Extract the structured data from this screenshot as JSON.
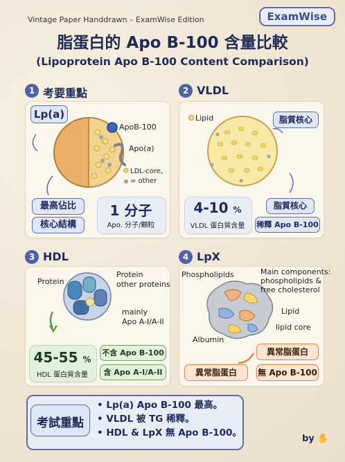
{
  "brand": "ExamWise",
  "edition": "Vintage Paper Handdrawn – ExamWise Edition",
  "title": "脂蛋白的 Apo B-100 含量比較",
  "subtitle": "(Lipoprotein Apo B-100 Content Comparison)",
  "sections": {
    "s1": {
      "num": "1",
      "heading": "考要重點",
      "tag": "Lp(a)",
      "labels": {
        "apob": "ApoB-100",
        "apoa": "Apo(a)",
        "core1": "LDL-core,",
        "core2": "= other"
      },
      "pill1": "最高佔比",
      "pill2": "核心結構",
      "big": "1 分子",
      "caption": "Apo. 分子/顆粒"
    },
    "s2": {
      "num": "2",
      "heading": "VLDL",
      "labels": {
        "lipid": "Lipid"
      },
      "pill_top": "脂質核心",
      "pill_mid": "脂質核心",
      "pill_bottom": "稀釋 Apo B-100",
      "big": "4-10",
      "unit": "%",
      "caption": "VLDL 蛋白質含量"
    },
    "s3": {
      "num": "3",
      "heading": "HDL",
      "labels": {
        "protein": "Protein",
        "protein2": "Protein",
        "other": "other proteins",
        "mainly": "mainly",
        "apoa": "Apo A-I/A-II"
      },
      "big": "45-55",
      "unit": "%",
      "caption": "HDL 蛋白質含量",
      "pill1": "不含 Apo B-100",
      "pill2": "含 Apo A-I/A-II"
    },
    "s4": {
      "num": "4",
      "heading": "LpX",
      "labels": {
        "phospho": "Phospholipids",
        "main1": "Main components:",
        "main2": "phospholipids &",
        "main3": "free cholesterol",
        "lipid": "Lipid",
        "core": "lipid core",
        "albumin": "Albumin"
      },
      "pill_right": "異常脂蛋白",
      "pill_left": "異常脂蛋白",
      "pill_no": "無 Apo B-100"
    }
  },
  "summary": {
    "title": "考試重點",
    "items": [
      "Lp(a) Apo B-100 最高。",
      "VLDL 被 TG 稀釋。",
      "HDL & LpX 無 Apo B-100。"
    ]
  },
  "footer": {
    "by": "by"
  },
  "colors": {
    "navy": "#1e2a5a",
    "accent": "#4e63a7",
    "green": "#6ea35f",
    "orange": "#d8824c",
    "paper": "#f3ebdc"
  }
}
